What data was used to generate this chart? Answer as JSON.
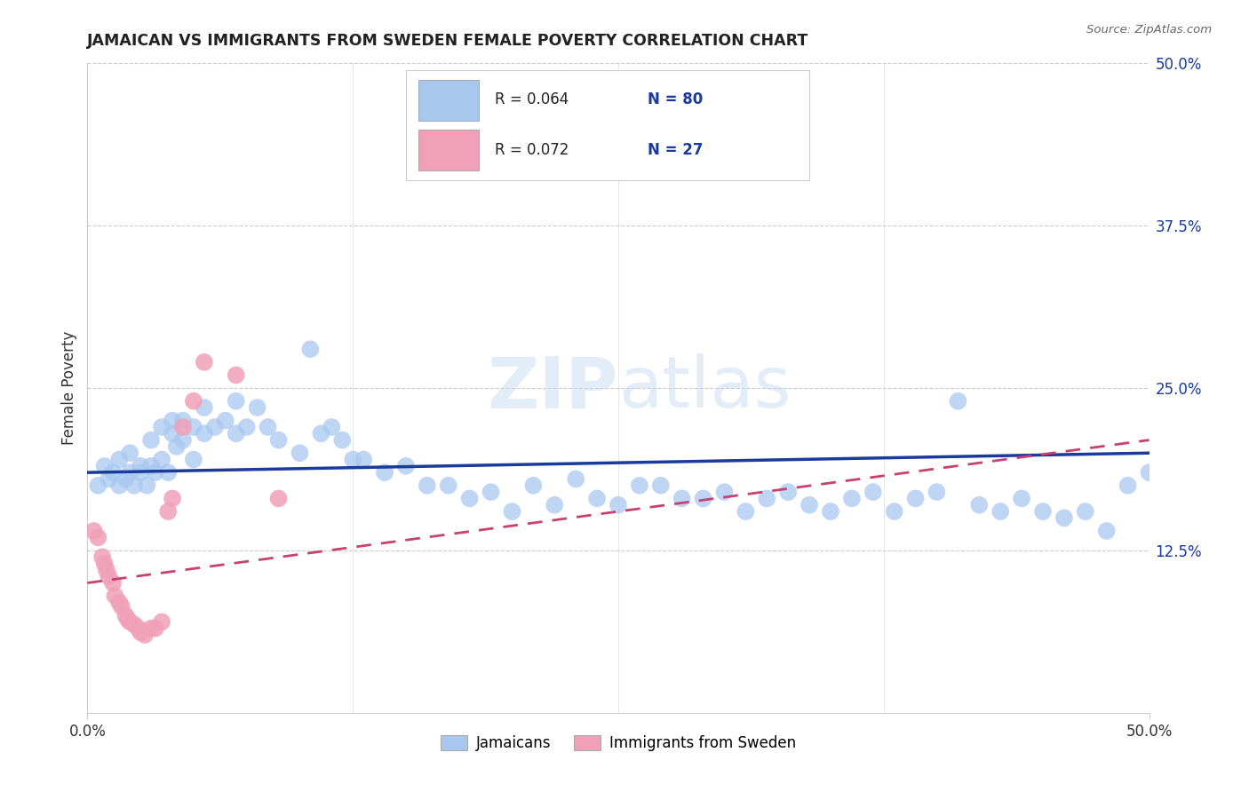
{
  "title": "JAMAICAN VS IMMIGRANTS FROM SWEDEN FEMALE POVERTY CORRELATION CHART",
  "source": "Source: ZipAtlas.com",
  "ylabel": "Female Poverty",
  "right_yticks": [
    "50.0%",
    "37.5%",
    "25.0%",
    "12.5%"
  ],
  "right_ytick_vals": [
    0.5,
    0.375,
    0.25,
    0.125
  ],
  "blue_color": "#A8C8F0",
  "pink_color": "#F0A0B8",
  "trend_blue": "#1A3A9C",
  "trend_pink": "#C84070",
  "watermark": "ZIPatlas",
  "xmin": 0.0,
  "xmax": 0.5,
  "ymin": 0.0,
  "ymax": 0.5,
  "blue_scatter_x": [
    0.005,
    0.008,
    0.01,
    0.012,
    0.015,
    0.015,
    0.018,
    0.02,
    0.02,
    0.022,
    0.025,
    0.025,
    0.028,
    0.03,
    0.03,
    0.032,
    0.035,
    0.035,
    0.038,
    0.04,
    0.04,
    0.042,
    0.045,
    0.045,
    0.05,
    0.05,
    0.055,
    0.055,
    0.06,
    0.065,
    0.07,
    0.07,
    0.075,
    0.08,
    0.085,
    0.09,
    0.1,
    0.105,
    0.11,
    0.115,
    0.12,
    0.125,
    0.13,
    0.14,
    0.15,
    0.16,
    0.17,
    0.18,
    0.19,
    0.2,
    0.21,
    0.22,
    0.23,
    0.24,
    0.25,
    0.26,
    0.27,
    0.28,
    0.29,
    0.3,
    0.31,
    0.32,
    0.33,
    0.34,
    0.35,
    0.36,
    0.37,
    0.38,
    0.39,
    0.4,
    0.41,
    0.42,
    0.43,
    0.44,
    0.45,
    0.46,
    0.47,
    0.48,
    0.49,
    0.5
  ],
  "blue_scatter_y": [
    0.175,
    0.19,
    0.18,
    0.185,
    0.175,
    0.195,
    0.18,
    0.185,
    0.2,
    0.175,
    0.19,
    0.185,
    0.175,
    0.19,
    0.21,
    0.185,
    0.22,
    0.195,
    0.185,
    0.215,
    0.225,
    0.205,
    0.21,
    0.225,
    0.22,
    0.195,
    0.235,
    0.215,
    0.22,
    0.225,
    0.24,
    0.215,
    0.22,
    0.235,
    0.22,
    0.21,
    0.2,
    0.28,
    0.215,
    0.22,
    0.21,
    0.195,
    0.195,
    0.185,
    0.19,
    0.175,
    0.175,
    0.165,
    0.17,
    0.155,
    0.175,
    0.16,
    0.18,
    0.165,
    0.16,
    0.175,
    0.175,
    0.165,
    0.165,
    0.17,
    0.155,
    0.165,
    0.17,
    0.16,
    0.155,
    0.165,
    0.17,
    0.155,
    0.165,
    0.17,
    0.24,
    0.16,
    0.155,
    0.165,
    0.155,
    0.15,
    0.155,
    0.14,
    0.175,
    0.185
  ],
  "pink_scatter_x": [
    0.003,
    0.005,
    0.007,
    0.008,
    0.009,
    0.01,
    0.012,
    0.013,
    0.015,
    0.016,
    0.018,
    0.019,
    0.02,
    0.022,
    0.024,
    0.025,
    0.027,
    0.03,
    0.032,
    0.035,
    0.038,
    0.04,
    0.045,
    0.05,
    0.055,
    0.07,
    0.09
  ],
  "pink_scatter_y": [
    0.14,
    0.135,
    0.12,
    0.115,
    0.11,
    0.105,
    0.1,
    0.09,
    0.085,
    0.082,
    0.075,
    0.072,
    0.07,
    0.068,
    0.065,
    0.062,
    0.06,
    0.065,
    0.065,
    0.07,
    0.155,
    0.165,
    0.22,
    0.24,
    0.27,
    0.26,
    0.165
  ],
  "b_slope": 0.03,
  "b_intercept": 0.185,
  "p_slope": 0.22,
  "p_intercept": 0.1
}
